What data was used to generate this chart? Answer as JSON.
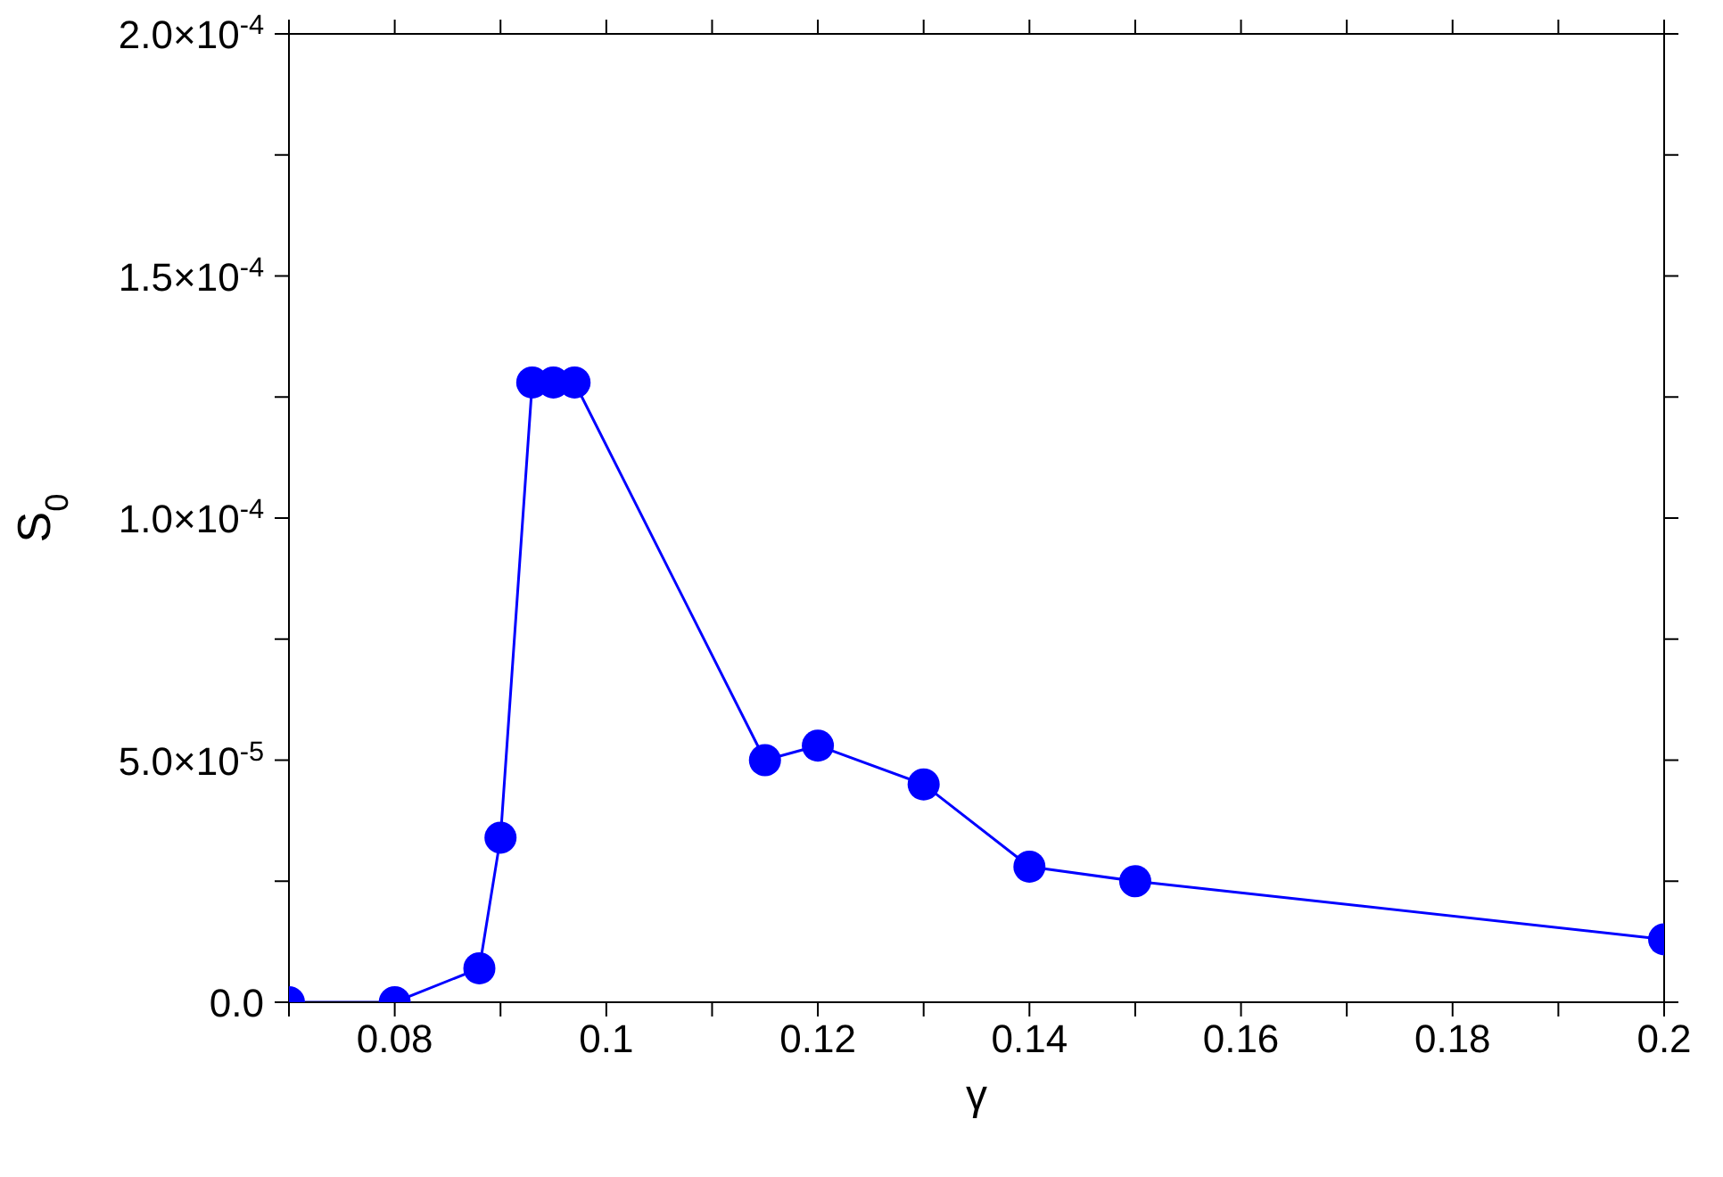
{
  "chart_data": {
    "type": "line",
    "xlabel": "γ",
    "ylabel": "S$_{0}$",
    "x": [
      0.07,
      0.08,
      0.088,
      0.09,
      0.093,
      0.095,
      0.097,
      0.115,
      0.12,
      0.13,
      0.14,
      0.15,
      0.2
    ],
    "series": [
      {
        "color": "#0000ff",
        "values": [
          0,
          0,
          7e-06,
          3.4e-05,
          0.000128,
          0.000128,
          0.000128,
          5e-05,
          5.3e-05,
          4.5e-05,
          2.8e-05,
          2.5e-05,
          1.3e-05
        ]
      }
    ],
    "xlim": [
      0.07,
      0.2
    ],
    "xticks": [
      {
        "value": 0.07,
        "label": null
      },
      0.08,
      {
        "value": 0.09,
        "label": null
      },
      {
        "value": 0.1,
        "label": "0.1"
      },
      {
        "value": 0.11,
        "label": null
      },
      0.12,
      {
        "value": 0.13,
        "label": null
      },
      0.14,
      {
        "value": 0.15,
        "label": null
      },
      0.16,
      {
        "value": 0.17,
        "label": null
      },
      0.18,
      {
        "value": 0.19,
        "label": null
      },
      {
        "value": 0.2,
        "label": "0.2"
      }
    ],
    "ylim": [
      0,
      0.0002
    ],
    "yticks": [
      {
        "value": 0,
        "label": "0.0"
      },
      {
        "value": 2.5e-05,
        "label": null
      },
      {
        "value": 5e-05,
        "label": "5.0×10$^{-5}$"
      },
      {
        "value": 7.5e-05,
        "label": null
      },
      {
        "value": 0.0001,
        "label": "1.0×10$^{-4}$"
      },
      {
        "value": 0.000125,
        "label": null
      },
      {
        "value": 0.00015,
        "label": "1.5×10$^{-4}$"
      },
      {
        "value": 0.000175,
        "label": null
      },
      {
        "value": 0.0002,
        "label": "2.0×10$^{-4}$"
      }
    ],
    "grid": false,
    "legend": false,
    "marker": "circle",
    "line_style": "solid"
  }
}
